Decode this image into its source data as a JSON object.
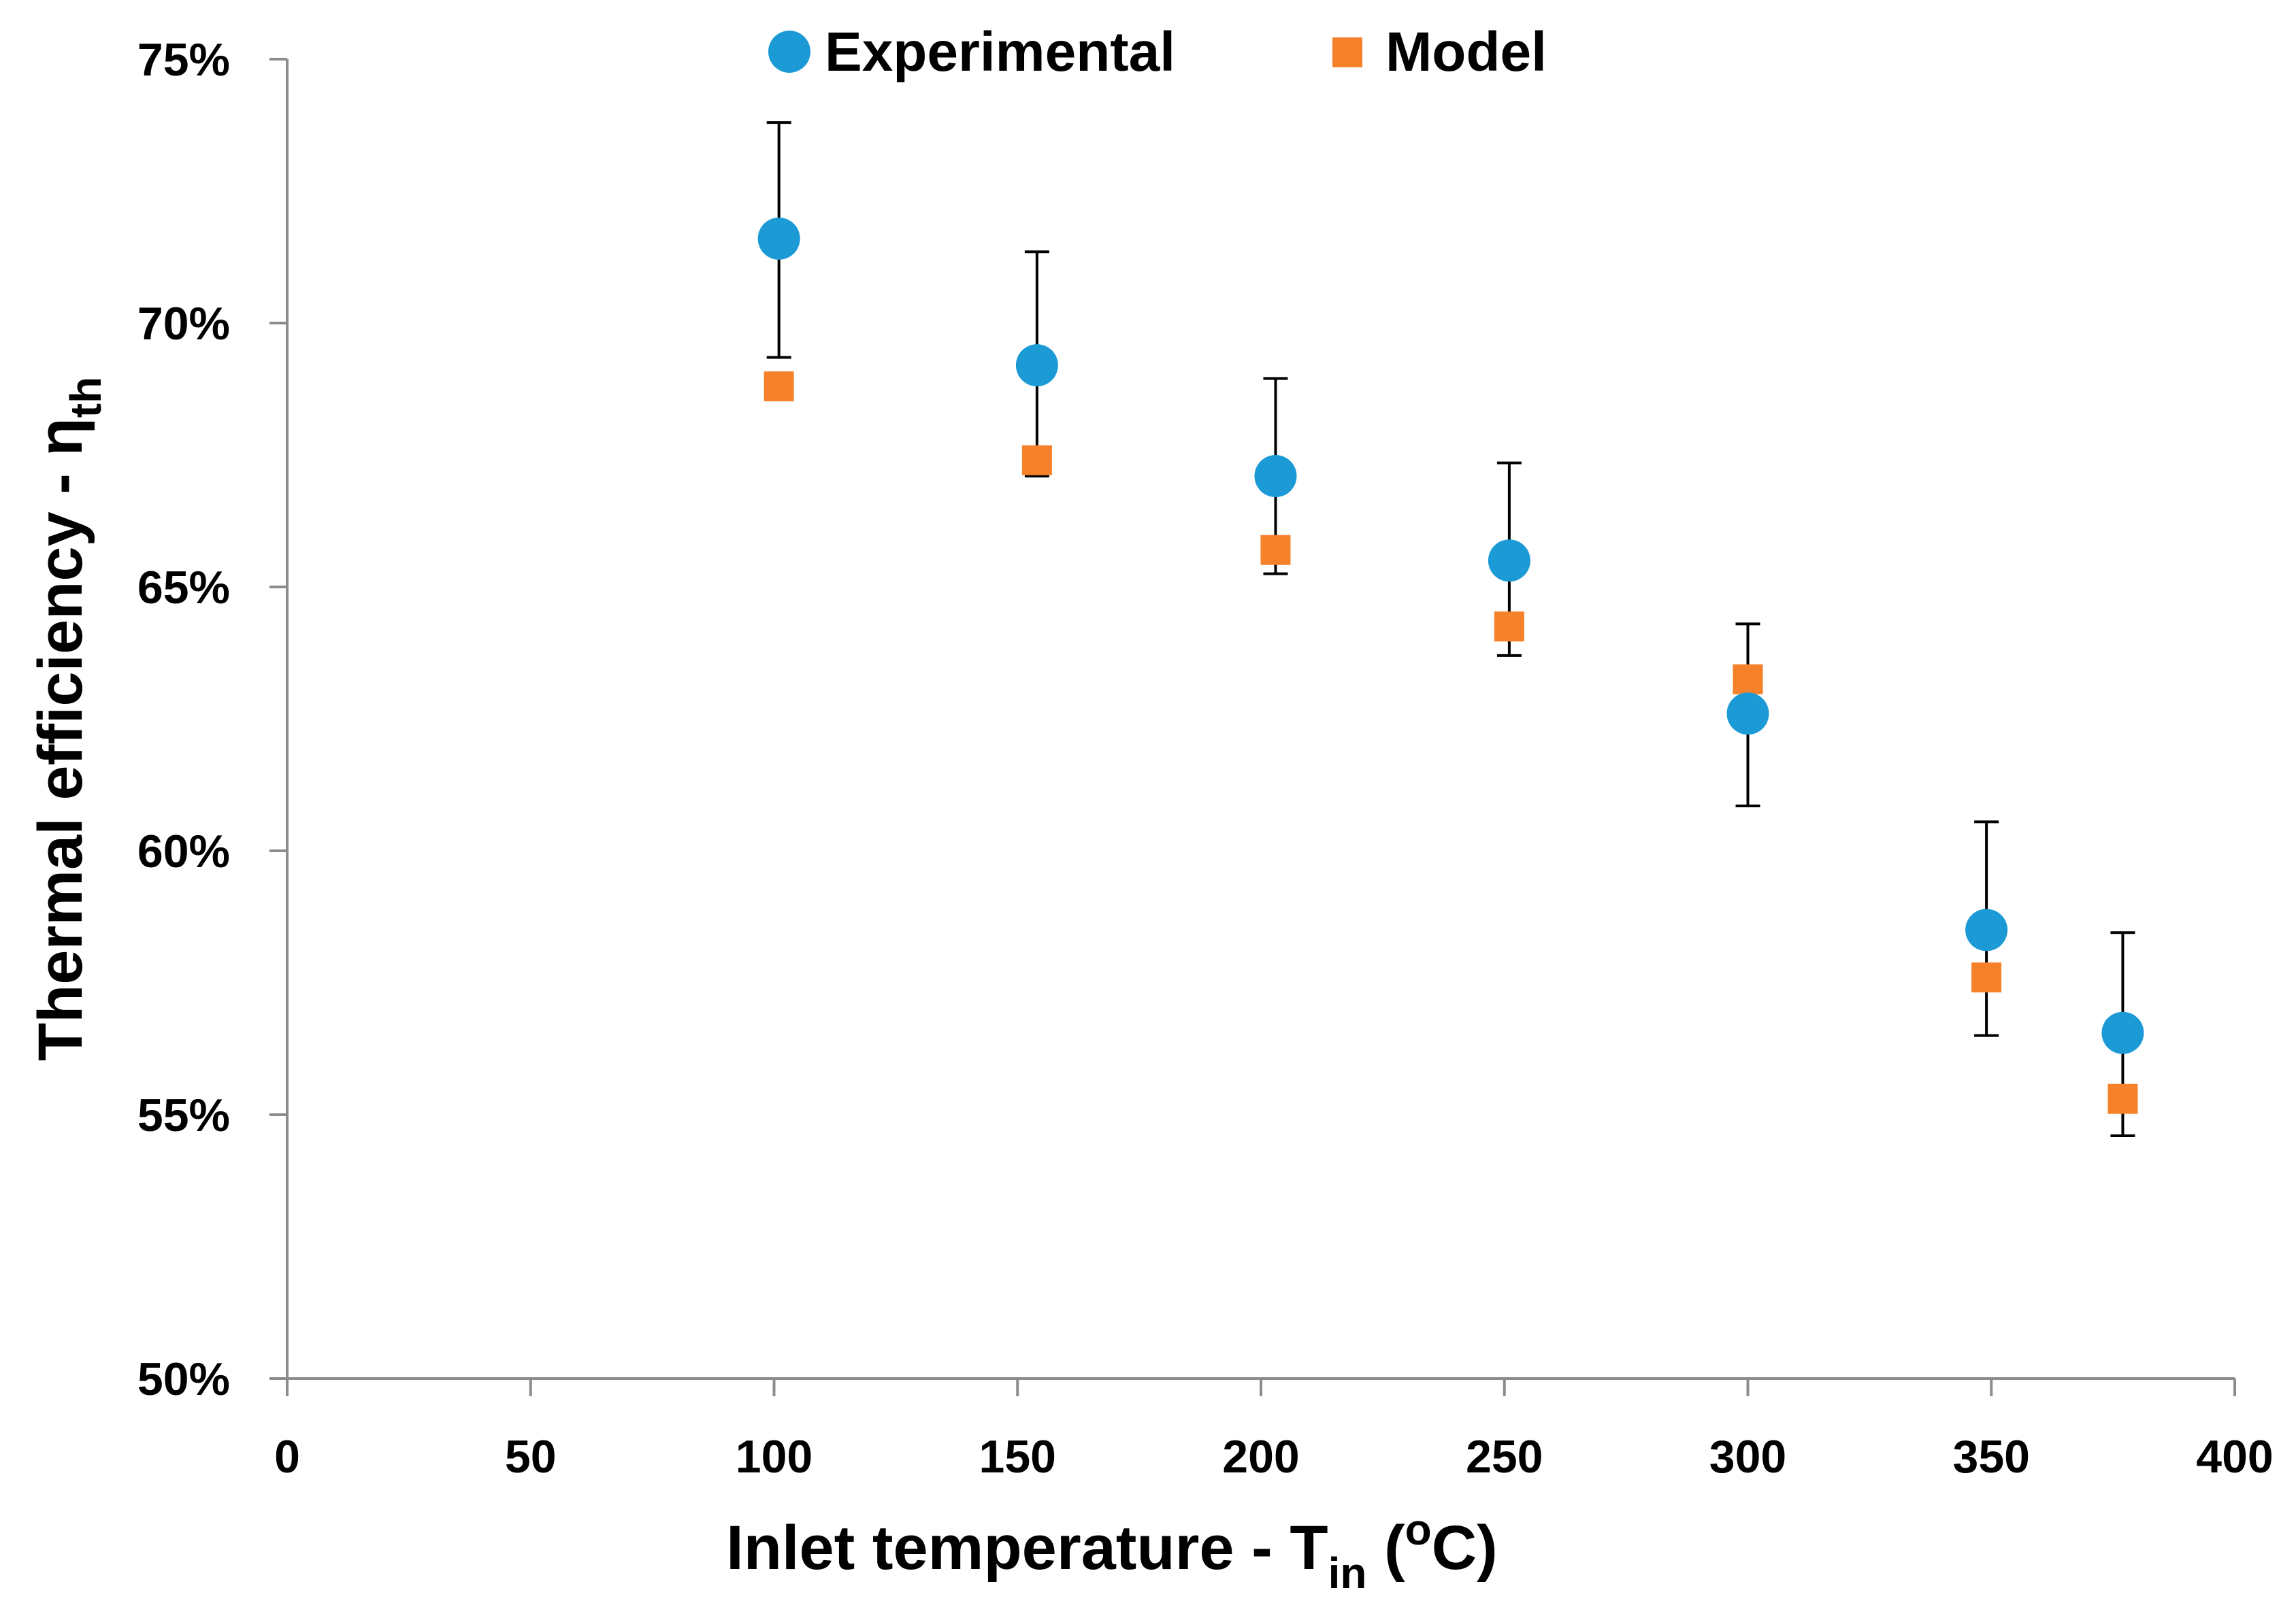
{
  "chart_data": {
    "type": "scatter",
    "title": "",
    "xlabel": {
      "main": "Inlet temperature - T",
      "sub": "in",
      "tail": " (",
      "sup": "o",
      "end": "C)"
    },
    "ylabel": {
      "main": "Thermal efficiency - η",
      "sub": "th"
    },
    "xlim": [
      0,
      400
    ],
    "ylim": [
      0.5,
      0.75
    ],
    "xticks": [
      0,
      50,
      100,
      150,
      200,
      250,
      300,
      350,
      400
    ],
    "xtick_labels": [
      "0",
      "50",
      "100",
      "150",
      "200",
      "250",
      "300",
      "350",
      "400"
    ],
    "yticks": [
      0.5,
      0.55,
      0.6,
      0.65,
      0.7,
      0.75
    ],
    "ytick_labels": [
      "50%",
      "55%",
      "60%",
      "65%",
      "70%",
      "75%"
    ],
    "grid": false,
    "legend_position": "top-center",
    "series": [
      {
        "name": "Experimental",
        "marker": "circle",
        "color": "#1b9ad6",
        "x": [
          101,
          154,
          203,
          251,
          300,
          349,
          377
        ],
        "y": [
          0.716,
          0.692,
          0.671,
          0.655,
          0.626,
          0.585,
          0.5655
        ],
        "err_upper": [
          0.738,
          0.7135,
          0.6895,
          0.6735,
          0.643,
          0.6055,
          0.5845
        ],
        "err_lower": [
          0.6935,
          0.671,
          0.6525,
          0.637,
          0.6085,
          0.565,
          0.546
        ]
      },
      {
        "name": "Model",
        "marker": "square",
        "color": "#f5822a",
        "x": [
          101,
          154,
          203,
          251,
          300,
          349,
          377
        ],
        "y": [
          0.688,
          0.674,
          0.657,
          0.6425,
          0.6325,
          0.576,
          0.553
        ]
      }
    ]
  }
}
